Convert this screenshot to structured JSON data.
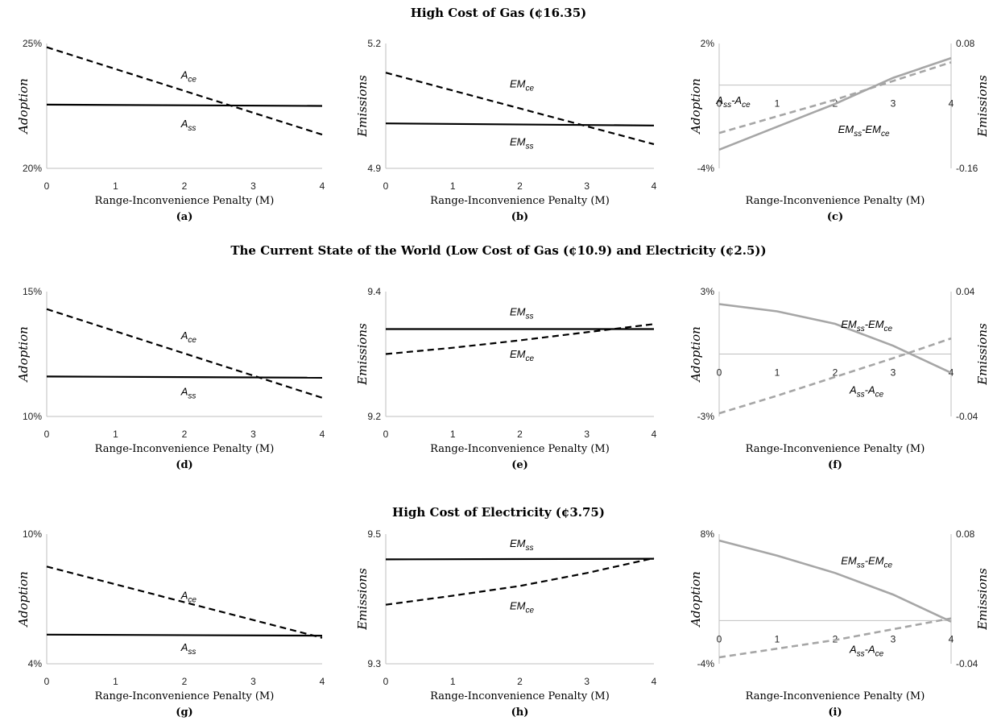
{
  "rows": [
    {
      "title": "High Cost of Gas (¢16.35)"
    },
    {
      "title": "The Current State of the World (Low Cost of Gas (¢10.9) and Electricity (¢2.5))"
    },
    {
      "title": "High Cost of Electricity (¢3.75)"
    }
  ],
  "chart_data": [
    {
      "id": "a",
      "panel_label": "(a)",
      "type": "line",
      "xlabel": "Range-Inconvenience Penalty (M)",
      "ylabel": "Adoption",
      "xlim": [
        0,
        4
      ],
      "xticks": [
        "0",
        "1",
        "2",
        "3",
        "4"
      ],
      "ylim": [
        20,
        25
      ],
      "yticks": [
        {
          "v": 20,
          "label": "20%"
        },
        {
          "v": 25,
          "label": "25%"
        }
      ],
      "series": [
        {
          "name": "A_ce",
          "style": "dashed",
          "color": "#000000",
          "x": [
            0,
            4
          ],
          "y": [
            24.85,
            21.35
          ],
          "label_at": [
            1.95,
            23.6
          ],
          "label_base": "A",
          "label_sub": "ce"
        },
        {
          "name": "A_ss",
          "style": "solid",
          "color": "#000000",
          "x": [
            0,
            4
          ],
          "y": [
            22.55,
            22.5
          ],
          "label_at": [
            1.95,
            21.65
          ],
          "label_base": "A",
          "label_sub": "ss"
        }
      ]
    },
    {
      "id": "b",
      "panel_label": "(b)",
      "type": "line",
      "xlabel": "Range-Inconvenience Penalty (M)",
      "ylabel": "Emissions",
      "xlim": [
        0,
        4
      ],
      "xticks": [
        "0",
        "1",
        "2",
        "3",
        "4"
      ],
      "ylim": [
        4.9,
        5.2
      ],
      "yticks": [
        {
          "v": 4.9,
          "label": "4.9"
        },
        {
          "v": 5.2,
          "label": "5.2"
        }
      ],
      "series": [
        {
          "name": "EM_ce",
          "style": "dashed",
          "color": "#000000",
          "x": [
            0,
            4
          ],
          "y": [
            5.13,
            4.958
          ],
          "label_at": [
            1.85,
            5.095
          ],
          "label_base": "EM",
          "label_sub": "ce"
        },
        {
          "name": "EM_ss",
          "style": "solid",
          "color": "#000000",
          "x": [
            0,
            4
          ],
          "y": [
            5.008,
            5.003
          ],
          "label_at": [
            1.85,
            4.955
          ],
          "label_base": "EM",
          "label_sub": "ss"
        }
      ]
    },
    {
      "id": "c",
      "panel_label": "(c)",
      "type": "line",
      "xlabel": "Range-Inconvenience Penalty (M)",
      "ylabel": "Adoption",
      "y2label": "Emissions",
      "xlim": [
        0,
        4
      ],
      "xticks": [
        "0",
        "1",
        "2",
        "3",
        "4"
      ],
      "xtick_zero_line": true,
      "ylim": [
        -4,
        2
      ],
      "yticks": [
        {
          "v": -4,
          "label": "-4%"
        },
        {
          "v": 2,
          "label": "2%"
        }
      ],
      "y2ticks": [
        {
          "v": -4,
          "label": "-0.16"
        },
        {
          "v": 2,
          "label": "0.08"
        }
      ],
      "series": [
        {
          "name": "A_ss-A_ce",
          "style": "dashed",
          "color": "#a6a6a6",
          "x": [
            0,
            1,
            2,
            3,
            4
          ],
          "y": [
            -2.3,
            -1.5,
            -0.7,
            0.2,
            1.1
          ],
          "label_at": [
            -0.05,
            -0.9
          ],
          "label_base": "A",
          "label_sub": "ss",
          "label_mid": "-A",
          "label_sub2": "ce"
        },
        {
          "name": "EM_ss-EM_ce",
          "style": "solid",
          "color": "#a6a6a6",
          "x": [
            0,
            1,
            2,
            3,
            4
          ],
          "y": [
            -3.1,
            -2.0,
            -0.9,
            0.35,
            1.3
          ],
          "label_at": [
            2.05,
            -2.3
          ],
          "label_base": "EM",
          "label_sub": "ss",
          "label_mid": "-EM",
          "label_sub2": "ce"
        }
      ]
    },
    {
      "id": "d",
      "panel_label": "(d)",
      "type": "line",
      "xlabel": "Range-Inconvenience Penalty (M)",
      "ylabel": "Adoption",
      "xlim": [
        0,
        4
      ],
      "xticks": [
        "0",
        "1",
        "2",
        "3",
        "4"
      ],
      "ylim": [
        10,
        15
      ],
      "yticks": [
        {
          "v": 10,
          "label": "10%"
        },
        {
          "v": 15,
          "label": "15%"
        }
      ],
      "series": [
        {
          "name": "A_ce",
          "style": "dashed",
          "color": "#000000",
          "x": [
            0,
            4
          ],
          "y": [
            14.3,
            10.75
          ],
          "label_at": [
            1.95,
            13.1
          ],
          "label_base": "A",
          "label_sub": "ce"
        },
        {
          "name": "A_ss",
          "style": "solid",
          "color": "#000000",
          "x": [
            0,
            4
          ],
          "y": [
            11.6,
            11.55
          ],
          "label_at": [
            1.95,
            10.85
          ],
          "label_base": "A",
          "label_sub": "ss"
        }
      ]
    },
    {
      "id": "e",
      "panel_label": "(e)",
      "type": "line",
      "xlabel": "Range-Inconvenience Penalty (M)",
      "ylabel": "Emissions",
      "xlim": [
        0,
        4
      ],
      "xticks": [
        "0",
        "1",
        "2",
        "3",
        "4"
      ],
      "ylim": [
        9.2,
        9.4
      ],
      "yticks": [
        {
          "v": 9.2,
          "label": "9.2"
        },
        {
          "v": 9.4,
          "label": "9.4"
        }
      ],
      "series": [
        {
          "name": "EM_ss",
          "style": "solid",
          "color": "#000000",
          "x": [
            0,
            4
          ],
          "y": [
            9.34,
            9.34
          ],
          "label_at": [
            1.85,
            9.362
          ],
          "label_base": "EM",
          "label_sub": "ss"
        },
        {
          "name": "EM_ce",
          "style": "dashed",
          "color": "#000000",
          "x": [
            0,
            1,
            2,
            3,
            4
          ],
          "y": [
            9.3,
            9.31,
            9.322,
            9.335,
            9.348
          ],
          "label_at": [
            1.85,
            9.294
          ],
          "label_base": "EM",
          "label_sub": "ce"
        }
      ]
    },
    {
      "id": "f",
      "panel_label": "(f)",
      "type": "line",
      "xlabel": "Range-Inconvenience Penalty (M)",
      "ylabel": "Adoption",
      "y2label": "Emissions",
      "xlim": [
        0,
        4
      ],
      "xticks": [
        "0",
        "1",
        "2",
        "3",
        "4"
      ],
      "ylim": [
        -3,
        3
      ],
      "yticks": [
        {
          "v": -3,
          "label": "-3%"
        },
        {
          "v": 3,
          "label": "3%"
        }
      ],
      "y2ticks": [
        {
          "v": -3,
          "label": "-0.04"
        },
        {
          "v": 3,
          "label": "0.04"
        }
      ],
      "series": [
        {
          "name": "EM_ss-EM_ce",
          "style": "solid",
          "color": "#a6a6a6",
          "x": [
            0,
            1,
            2,
            3,
            4
          ],
          "y": [
            2.4,
            2.05,
            1.45,
            0.4,
            -0.9
          ],
          "label_at": [
            2.1,
            1.25
          ],
          "label_base": "EM",
          "label_sub": "ss",
          "label_mid": "-EM",
          "label_sub2": "ce"
        },
        {
          "name": "A_ss-A_ce",
          "style": "dashed",
          "color": "#a6a6a6",
          "x": [
            0,
            1,
            2,
            3,
            4
          ],
          "y": [
            -2.85,
            -2.0,
            -1.1,
            -0.2,
            0.75
          ],
          "label_at": [
            2.25,
            -1.9
          ],
          "label_base": "A",
          "label_sub": "ss",
          "label_mid": "-A",
          "label_sub2": "ce"
        }
      ]
    },
    {
      "id": "g",
      "panel_label": "(g)",
      "type": "line",
      "xlabel": "Range-Inconvenience Penalty (M)",
      "ylabel": "Adoption",
      "xlim": [
        0,
        4
      ],
      "xticks": [
        "0",
        "1",
        "2",
        "3",
        "4"
      ],
      "ylim": [
        4,
        10
      ],
      "yticks": [
        {
          "v": 4,
          "label": "4%"
        },
        {
          "v": 10,
          "label": "10%"
        }
      ],
      "series": [
        {
          "name": "A_ce",
          "style": "dashed",
          "color": "#000000",
          "x": [
            0,
            4
          ],
          "y": [
            8.5,
            5.2
          ],
          "label_at": [
            1.95,
            7.0
          ],
          "label_base": "A",
          "label_sub": "ce"
        },
        {
          "name": "A_ss",
          "style": "solid",
          "color": "#000000",
          "x": [
            0,
            4
          ],
          "y": [
            5.35,
            5.3
          ],
          "label_at": [
            1.95,
            4.6
          ],
          "label_base": "A",
          "label_sub": "ss"
        }
      ]
    },
    {
      "id": "h",
      "panel_label": "(h)",
      "type": "line",
      "xlabel": "Range-Inconvenience Penalty (M)",
      "ylabel": "Emissions",
      "xlim": [
        0,
        4
      ],
      "xticks": [
        "0",
        "1",
        "2",
        "3",
        "4"
      ],
      "ylim": [
        9.3,
        9.5
      ],
      "yticks": [
        {
          "v": 9.3,
          "label": "9.3"
        },
        {
          "v": 9.5,
          "label": "9.5"
        }
      ],
      "series": [
        {
          "name": "EM_ss",
          "style": "solid",
          "color": "#000000",
          "x": [
            0,
            4
          ],
          "y": [
            9.461,
            9.462
          ],
          "label_at": [
            1.85,
            9.48
          ],
          "label_base": "EM",
          "label_sub": "ss"
        },
        {
          "name": "EM_ce",
          "style": "dashed",
          "color": "#000000",
          "x": [
            0,
            1,
            2,
            3,
            4
          ],
          "y": [
            9.391,
            9.405,
            9.42,
            9.44,
            9.463
          ],
          "label_at": [
            1.85,
            9.384
          ],
          "label_base": "EM",
          "label_sub": "ce"
        }
      ]
    },
    {
      "id": "i",
      "panel_label": "(i)",
      "type": "line",
      "xlabel": "Range-Inconvenience Penalty (M)",
      "ylabel": "Adoption",
      "y2label": "Emissions",
      "xlim": [
        0,
        4
      ],
      "xticks": [
        "0",
        "1",
        "2",
        "3",
        "4"
      ],
      "ylim": [
        -4,
        8
      ],
      "yticks": [
        {
          "v": -4,
          "label": "-4%"
        },
        {
          "v": 8,
          "label": "8%"
        }
      ],
      "y2ticks": [
        {
          "v": -4,
          "label": "-0.04"
        },
        {
          "v": 8,
          "label": "0.08"
        }
      ],
      "series": [
        {
          "name": "EM_ss-EM_ce",
          "style": "solid",
          "color": "#a6a6a6",
          "x": [
            0,
            1,
            2,
            3,
            4
          ],
          "y": [
            7.4,
            6.0,
            4.4,
            2.4,
            -0.1
          ],
          "label_at": [
            2.1,
            5.2
          ],
          "label_base": "EM",
          "label_sub": "ss",
          "label_mid": "-EM",
          "label_sub2": "ce"
        },
        {
          "name": "A_ss-A_ce",
          "style": "dashed",
          "color": "#a6a6a6",
          "x": [
            0,
            1,
            2,
            3,
            4
          ],
          "y": [
            -3.4,
            -2.6,
            -1.8,
            -0.8,
            0.2
          ],
          "label_at": [
            2.25,
            -3.0
          ],
          "label_base": "A",
          "label_sub": "ss",
          "label_mid": "-A",
          "label_sub2": "ce"
        }
      ]
    }
  ]
}
